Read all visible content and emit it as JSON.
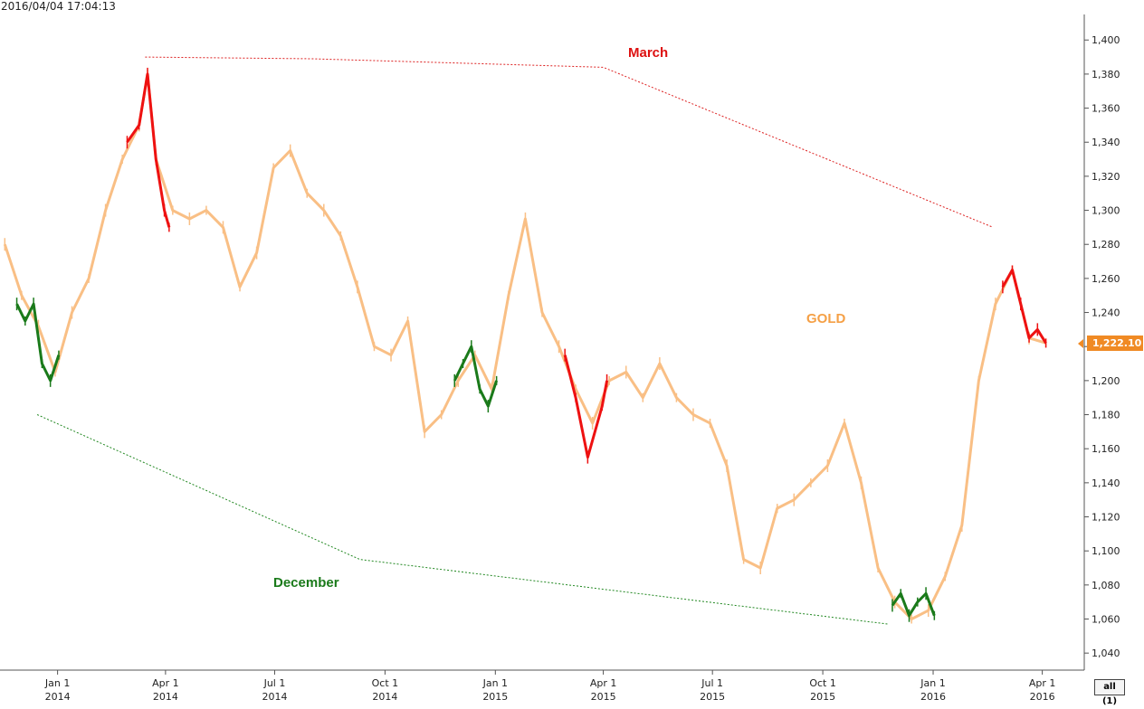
{
  "timestamp": "2016/04/04 17:04:13",
  "range_button": "all (1)",
  "chart_data": {
    "type": "line",
    "series": [
      {
        "name": "GOLD",
        "color": "#f9bf85",
        "x": [
          "2013-11-18",
          "2013-12-02",
          "2013-12-16",
          "2013-12-30",
          "2014-01-13",
          "2014-01-27",
          "2014-02-10",
          "2014-02-24",
          "2014-03-10",
          "2014-03-17",
          "2014-03-24",
          "2014-04-07",
          "2014-04-21",
          "2014-05-05",
          "2014-05-19",
          "2014-06-02",
          "2014-06-16",
          "2014-06-30",
          "2014-07-14",
          "2014-07-28",
          "2014-08-11",
          "2014-08-25",
          "2014-09-08",
          "2014-09-22",
          "2014-10-06",
          "2014-10-20",
          "2014-11-03",
          "2014-11-17",
          "2014-12-01",
          "2014-12-15",
          "2014-12-29",
          "2015-01-12",
          "2015-01-26",
          "2015-02-09",
          "2015-02-23",
          "2015-03-09",
          "2015-03-23",
          "2015-04-06",
          "2015-04-20",
          "2015-05-04",
          "2015-05-18",
          "2015-06-01",
          "2015-06-15",
          "2015-06-29",
          "2015-07-13",
          "2015-07-27",
          "2015-08-10",
          "2015-08-24",
          "2015-09-07",
          "2015-09-21",
          "2015-10-05",
          "2015-10-19",
          "2015-11-02",
          "2015-11-16",
          "2015-11-30",
          "2015-12-14",
          "2015-12-28",
          "2016-01-11",
          "2016-01-25",
          "2016-02-08",
          "2016-02-22",
          "2016-03-07",
          "2016-03-21",
          "2016-04-04"
        ],
        "values": [
          1280,
          1250,
          1232,
          1205,
          1240,
          1260,
          1300,
          1330,
          1350,
          1380,
          1330,
          1300,
          1295,
          1300,
          1290,
          1255,
          1275,
          1325,
          1335,
          1310,
          1300,
          1285,
          1255,
          1220,
          1215,
          1235,
          1170,
          1180,
          1200,
          1215,
          1195,
          1250,
          1295,
          1240,
          1220,
          1195,
          1175,
          1200,
          1205,
          1190,
          1210,
          1190,
          1180,
          1175,
          1150,
          1095,
          1090,
          1125,
          1130,
          1140,
          1150,
          1175,
          1140,
          1090,
          1070,
          1060,
          1065,
          1085,
          1115,
          1200,
          1245,
          1265,
          1225,
          1222.1
        ]
      },
      {
        "name": "",
        "color": "#ee1111",
        "x": [
          "2014-02-28",
          "2014-03-10",
          "2014-03-17",
          "2014-03-24",
          "2014-03-31",
          "2014-04-04"
        ],
        "values": [
          1340,
          1350,
          1380,
          1330,
          1300,
          1290
        ]
      },
      {
        "name": "",
        "color": "#ee1111",
        "x": [
          "2015-02-28",
          "2015-03-09",
          "2015-03-19",
          "2015-03-31",
          "2015-04-04"
        ],
        "values": [
          1215,
          1190,
          1155,
          1185,
          1200
        ]
      },
      {
        "name": "",
        "color": "#ee1111",
        "x": [
          "2016-02-28",
          "2016-03-07",
          "2016-03-14",
          "2016-03-21",
          "2016-03-28",
          "2016-04-04"
        ],
        "values": [
          1255,
          1265,
          1245,
          1225,
          1230,
          1222
        ]
      },
      {
        "name": "",
        "color": "#1a7a1a",
        "x": [
          "2013-11-28",
          "2013-12-05",
          "2013-12-12",
          "2013-12-19",
          "2013-12-26",
          "2014-01-02"
        ],
        "values": [
          1245,
          1235,
          1245,
          1210,
          1200,
          1215
        ]
      },
      {
        "name": "",
        "color": "#1a7a1a",
        "x": [
          "2014-11-28",
          "2014-12-05",
          "2014-12-12",
          "2014-12-19",
          "2014-12-26",
          "2015-01-02"
        ],
        "values": [
          1200,
          1210,
          1220,
          1195,
          1185,
          1200
        ]
      },
      {
        "name": "",
        "color": "#1a7a1a",
        "x": [
          "2015-11-28",
          "2015-12-05",
          "2015-12-12",
          "2015-12-19",
          "2015-12-26",
          "2016-01-02"
        ],
        "values": [
          1068,
          1075,
          1062,
          1070,
          1075,
          1062
        ]
      }
    ],
    "trendlines": [
      {
        "label": "March",
        "color": "#dd2222",
        "x": [
          "2014-03-15",
          "2014-08-01",
          "2015-04-01",
          "2016-02-20"
        ],
        "values": [
          1390,
          1389,
          1384,
          1290
        ]
      },
      {
        "label": "December",
        "color": "#228822",
        "x": [
          "2013-12-15",
          "2014-09-10",
          "2015-11-25"
        ],
        "values": [
          1180,
          1095,
          1057
        ]
      }
    ],
    "annotations": [
      "March",
      "December",
      "GOLD"
    ],
    "last_value": "1,222.10",
    "yticks": [
      "1,040",
      "1,060",
      "1,080",
      "1,100",
      "1,120",
      "1,140",
      "1,160",
      "1,180",
      "1,200",
      "1,220",
      "1,240",
      "1,260",
      "1,280",
      "1,300",
      "1,320",
      "1,340",
      "1,360",
      "1,380",
      "1,400"
    ],
    "ylim": [
      1030,
      1415
    ],
    "xticks": [
      {
        "date": "2014-01-01",
        "line1": "Jan 1",
        "line2": "2014"
      },
      {
        "date": "2014-04-01",
        "line1": "Apr 1",
        "line2": "2014"
      },
      {
        "date": "2014-07-01",
        "line1": "Jul 1",
        "line2": "2014"
      },
      {
        "date": "2014-10-01",
        "line1": "Oct 1",
        "line2": "2014"
      },
      {
        "date": "2015-01-01",
        "line1": "Jan 1",
        "line2": "2015"
      },
      {
        "date": "2015-04-01",
        "line1": "Apr 1",
        "line2": "2015"
      },
      {
        "date": "2015-07-01",
        "line1": "Jul 1",
        "line2": "2015"
      },
      {
        "date": "2015-10-01",
        "line1": "Oct 1",
        "line2": "2015"
      },
      {
        "date": "2016-01-01",
        "line1": "Jan 1",
        "line2": "2016"
      },
      {
        "date": "2016-04-01",
        "line1": "Apr 1",
        "line2": "2016"
      }
    ],
    "xlim": [
      "2013-11-14",
      "2016-05-06"
    ],
    "grid": false,
    "legend": "none"
  }
}
